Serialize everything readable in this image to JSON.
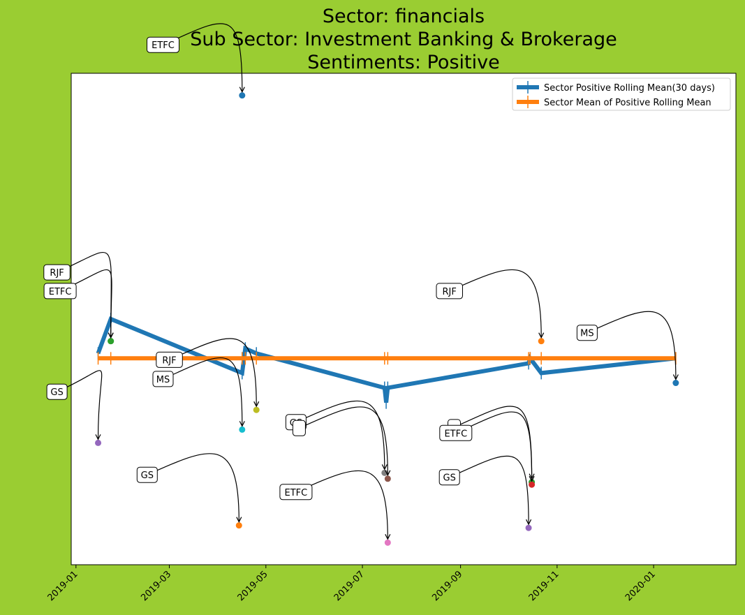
{
  "colors": {
    "background": "#9acd32",
    "plot_background": "#ffffff",
    "rolling_mean": "#1f77b4",
    "sector_mean": "#ff7f0e"
  },
  "chart_data": {
    "type": "line",
    "title": [
      "Sector:  financials",
      "Sub Sector:  Investment Banking & Brokerage",
      "Sentiments:  Positive"
    ],
    "xlabel": "",
    "ylabel": "",
    "x_axis": "date",
    "x_ticks": [
      "2019-01",
      "2019-03",
      "2019-05",
      "2019-07",
      "2019-09",
      "2019-11",
      "2020-01"
    ],
    "x_tick_labels_rotation": 45,
    "xlim": [
      "2018-12-29",
      "2020-02-22"
    ],
    "ylim": [
      0,
      1
    ],
    "y_ticks_visible": false,
    "grid": false,
    "legend_position": "top-right",
    "legend": [
      "Sector Positive Rolling Mean(30 days)",
      "Sector Mean of Positive Rolling Mean"
    ],
    "series": [
      {
        "name": "Sector Positive Rolling Mean(30 days)",
        "color": "#1f77b4",
        "marker": "|",
        "x": [
          "2019-01-15",
          "2019-01-23",
          "2019-04-16",
          "2019-04-18",
          "2019-04-25",
          "2019-07-15",
          "2019-07-16",
          "2019-07-17",
          "2019-10-14",
          "2019-10-15",
          "2019-10-22",
          "2020-01-15"
        ],
        "y": [
          0.43,
          0.5,
          0.39,
          0.44,
          0.43,
          0.36,
          0.33,
          0.36,
          0.41,
          0.42,
          0.39,
          0.42
        ]
      },
      {
        "name": "Sector Mean of Positive Rolling Mean",
        "color": "#ff7f0e",
        "marker": "|",
        "x": [
          "2019-01-15",
          "2019-01-23",
          "2019-04-16",
          "2019-04-18",
          "2019-04-25",
          "2019-07-15",
          "2019-07-17",
          "2019-10-14",
          "2019-10-15",
          "2019-10-22",
          "2020-01-15"
        ],
        "y": [
          0.42,
          0.42,
          0.42,
          0.42,
          0.42,
          0.42,
          0.42,
          0.42,
          0.42,
          0.42,
          0.42
        ]
      }
    ],
    "points": [
      {
        "label": "ETFC",
        "x": "2019-04-16",
        "y": 0.955,
        "color": "#1f77b4",
        "label_x": "2019-02-25",
        "label_y": 1.058
      },
      {
        "label": "RJF",
        "x": "2019-01-23",
        "y": 0.455,
        "color": "#2ca02c",
        "label_x": "2018-12-20",
        "label_y": 0.595
      },
      {
        "label": "ETFC",
        "x": "2019-01-23",
        "y": 0.455,
        "color": "#2ca02c",
        "label_x": "2018-12-22",
        "label_y": 0.557
      },
      {
        "label": "GS",
        "x": "2019-01-15",
        "y": 0.248,
        "color": "#9467bd",
        "label_x": "2018-12-20",
        "label_y": 0.352
      },
      {
        "label": "RJF",
        "x": "2019-04-25",
        "y": 0.315,
        "color": "#bcbd22",
        "label_x": "2019-03-01",
        "label_y": 0.417
      },
      {
        "label": "MS",
        "x": "2019-04-16",
        "y": 0.275,
        "color": "#17becf",
        "label_x": "2019-02-25",
        "label_y": 0.378
      },
      {
        "label": "GS",
        "x": "2019-04-14",
        "y": 0.08,
        "color": "#ff7f0e",
        "label_x": "2019-02-15",
        "label_y": 0.183
      },
      {
        "label": "GS",
        "x": "2019-07-15",
        "y": 0.187,
        "color": "#7f7f7f",
        "label_x": "2019-05-20",
        "label_y": 0.29
      },
      {
        "label": "",
        "x": "2019-07-17",
        "y": 0.175,
        "color": "#8c564b",
        "label_x": "2019-05-22",
        "label_y": 0.278
      },
      {
        "label": "ETFC",
        "x": "2019-07-17",
        "y": 0.045,
        "color": "#e377c2",
        "label_x": "2019-05-20",
        "label_y": 0.148
      },
      {
        "label": "RJF",
        "x": "2019-10-22",
        "y": 0.455,
        "color": "#ff7f0e",
        "label_x": "2019-08-25",
        "label_y": 0.557
      },
      {
        "label": "MS",
        "x": "2020-01-15",
        "y": 0.37,
        "color": "#1f77b4",
        "label_x": "2019-11-20",
        "label_y": 0.472
      },
      {
        "label": "",
        "x": "2019-10-16",
        "y": 0.168,
        "color": "#2ca02c",
        "label_x": "2019-08-28",
        "label_y": 0.28
      },
      {
        "label": "ETFC",
        "x": "2019-10-16",
        "y": 0.163,
        "color": "#d62728",
        "label_x": "2019-08-29",
        "label_y": 0.268
      },
      {
        "label": "GS",
        "x": "2019-10-14",
        "y": 0.075,
        "color": "#9467bd",
        "label_x": "2019-08-25",
        "label_y": 0.178
      }
    ]
  }
}
